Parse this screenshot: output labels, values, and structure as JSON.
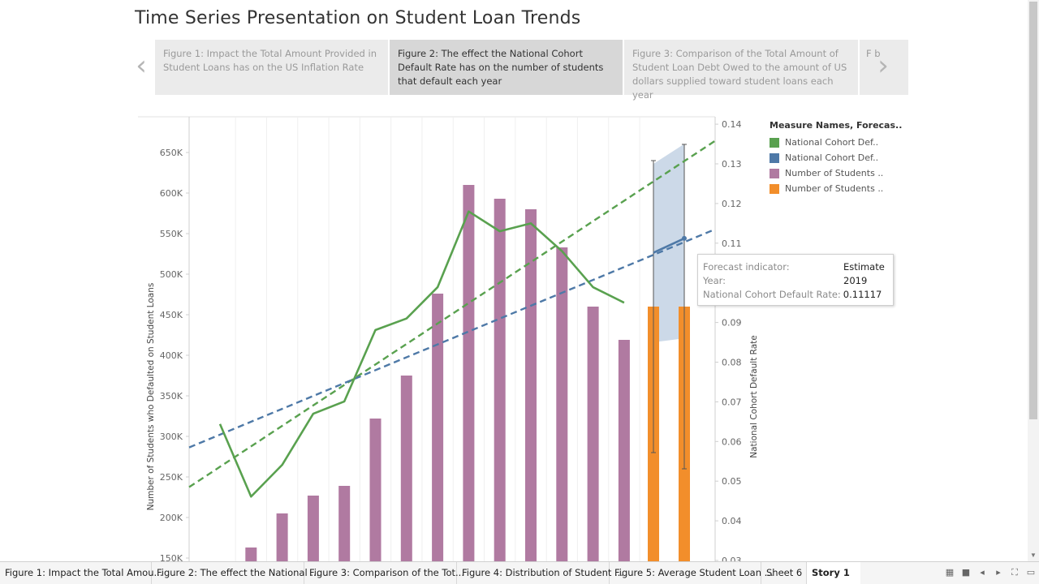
{
  "story": {
    "title": "Time Series Presentation on Student Loan Trends",
    "points": [
      {
        "label": "Figure 1: Impact the Total Amount Provided in Student Loans has on the US Inflation Rate",
        "active": false
      },
      {
        "label": "Figure 2: The effect the National Cohort Default Rate has on the number of students that default each year",
        "active": true
      },
      {
        "label": "Figure 3: Comparison of the Total Amount of Student Loan Debt Owed to the amount of US dollars supplied toward student loans each year",
        "active": false
      },
      {
        "label": "F b",
        "active": false
      }
    ],
    "prev_icon": "‹",
    "next_icon": "›"
  },
  "legend": {
    "title": "Measure Names, Forecas..",
    "items": [
      {
        "label": "National Cohort Def..",
        "color": "#59a14f"
      },
      {
        "label": "National Cohort Def..",
        "color": "#4e79a7"
      },
      {
        "label": "Number of Students ..",
        "color": "#b07aa1"
      },
      {
        "label": "Number of Students ..",
        "color": "#f28e2b"
      }
    ]
  },
  "tooltip": {
    "rows": [
      {
        "label": "Forecast indicator:",
        "value": "Estimate"
      },
      {
        "label": "Year:",
        "value": "2019"
      },
      {
        "label": "National Cohort Default Rate:",
        "value": "0.11117"
      }
    ]
  },
  "chart_data": {
    "type": "bar",
    "ylabel": "Number of Students who Defaulted on Student Loans",
    "y2label": "National Cohort Default Rate",
    "ylim": [
      150000,
      695000
    ],
    "y2lim": [
      0.03,
      0.141
    ],
    "y_ticks": [
      "150K",
      "200K",
      "250K",
      "300K",
      "350K",
      "400K",
      "450K",
      "500K",
      "550K",
      "600K",
      "650K"
    ],
    "y_tick_values": [
      150000,
      200000,
      250000,
      300000,
      350000,
      400000,
      450000,
      500000,
      550000,
      600000,
      650000
    ],
    "y2_ticks": [
      "0.03",
      "0.04",
      "0.05",
      "0.06",
      "0.07",
      "0.08",
      "0.09",
      "0.10",
      "0.11",
      "0.12",
      "0.13",
      "0.14"
    ],
    "y2_tick_values": [
      0.03,
      0.04,
      0.05,
      0.06,
      0.07,
      0.08,
      0.09,
      0.1,
      0.11,
      0.12,
      0.13,
      0.14
    ],
    "bars_actual": {
      "color": "#b07aa1",
      "values": [
        null,
        163000,
        205000,
        227000,
        239000,
        322000,
        375000,
        476000,
        610000,
        593000,
        580000,
        533000,
        460000,
        419000
      ]
    },
    "bars_forecast": {
      "color": "#f28e2b",
      "values": [
        460000,
        460000
      ],
      "ranges": [
        [
          280000,
          640000
        ],
        [
          260000,
          660000
        ]
      ]
    },
    "rate_actual": {
      "color": "#59a14f",
      "values": [
        0.0644,
        0.0461,
        0.0541,
        0.067,
        0.0701,
        0.0881,
        0.091,
        0.0989,
        0.118,
        0.113,
        0.115,
        0.108,
        0.0989,
        0.095
      ]
    },
    "rate_forecast": {
      "color": "#4e79a7",
      "values": [
        0.1076,
        0.1112
      ],
      "band_low": [
        0.085,
        0.086
      ],
      "band_high": [
        0.13,
        0.135
      ],
      "band_color": "#c7d5e6"
    },
    "trend_rate": {
      "color": "#59a14f",
      "from": 0.0485,
      "to": 0.1358
    },
    "trend_forecast": {
      "color": "#4e79a7",
      "from": 0.0585,
      "to": 0.1135
    },
    "grid": true
  },
  "tabs": [
    {
      "label": "Figure 1: Impact the Total Amou...",
      "active": false
    },
    {
      "label": "Figure 2: The effect the National ...",
      "active": false
    },
    {
      "label": "Figure 3: Comparison of the Tot...",
      "active": false
    },
    {
      "label": "Figure 4: Distribution of Student ...",
      "active": false
    },
    {
      "label": "Figure 5: Average Student Loan ...",
      "active": false
    },
    {
      "label": "Sheet 6",
      "active": false
    },
    {
      "label": "Story 1",
      "active": true
    }
  ],
  "tab_controls": {
    "grid_icon": "▦",
    "square_icon": "■",
    "prev_icon": "◂",
    "next_icon": "▸",
    "fit_icon": "⛶",
    "present_icon": "▭"
  },
  "scrollbar": {
    "down_icon": "▼"
  }
}
